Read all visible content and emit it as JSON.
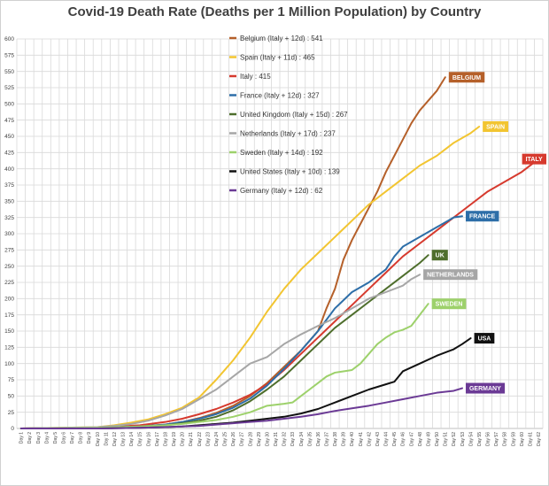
{
  "chart_data": {
    "type": "line",
    "title": "Covid-19 Death Rate (Deaths per 1 Million Population) by Country",
    "xlabel": "",
    "ylabel": "",
    "ylim": [
      0,
      600
    ],
    "yticks": [
      0,
      25,
      50,
      75,
      100,
      125,
      150,
      175,
      200,
      225,
      250,
      275,
      300,
      325,
      350,
      375,
      400,
      425,
      450,
      475,
      500,
      525,
      550,
      575,
      600
    ],
    "x": [
      "Day 1",
      "Day 2",
      "Day 3",
      "Day 4",
      "Day 5",
      "Day 6",
      "Day 7",
      "Day 8",
      "Day 9",
      "Day 10",
      "Day 11",
      "Day 12",
      "Day 13",
      "Day 14",
      "Day 15",
      "Day 16",
      "Day 17",
      "Day 18",
      "Day 19",
      "Day 20",
      "Day 21",
      "Day 22",
      "Day 23",
      "Day 24",
      "Day 25",
      "Day 26",
      "Day 27",
      "Day 28",
      "Day 29",
      "Day 30",
      "Day 31",
      "Day 32",
      "Day 33",
      "Day 34",
      "Day 35",
      "Day 36",
      "Day 37",
      "Day 38",
      "Day 39",
      "Day 40",
      "Day 41",
      "Day 42",
      "Day 43",
      "Day 44",
      "Day 45",
      "Day 46",
      "Day 47",
      "Day 48",
      "Day 49",
      "Day 50",
      "Day 51",
      "Day 52",
      "Day 53",
      "Day 54",
      "Day 55",
      "Day 56",
      "Day 57",
      "Day 58",
      "Day 59",
      "Day 60",
      "Day 61",
      "Day 62"
    ],
    "grid": true,
    "legend_position": "top-center",
    "series": [
      {
        "name": "Belgium (Italy + 12d) : 541",
        "end_label": "BELGIUM",
        "color": "#b5602a",
        "points": [
          [
            1,
            0
          ],
          [
            10,
            1
          ],
          [
            15,
            3
          ],
          [
            18,
            6
          ],
          [
            20,
            10
          ],
          [
            22,
            16
          ],
          [
            24,
            24
          ],
          [
            26,
            35
          ],
          [
            28,
            50
          ],
          [
            30,
            70
          ],
          [
            32,
            95
          ],
          [
            34,
            120
          ],
          [
            36,
            150
          ],
          [
            37,
            185
          ],
          [
            38,
            215
          ],
          [
            39,
            260
          ],
          [
            40,
            290
          ],
          [
            41,
            315
          ],
          [
            42,
            340
          ],
          [
            43,
            365
          ],
          [
            44,
            395
          ],
          [
            45,
            420
          ],
          [
            46,
            445
          ],
          [
            47,
            470
          ],
          [
            48,
            490
          ],
          [
            49,
            505
          ],
          [
            50,
            520
          ],
          [
            51,
            541
          ]
        ]
      },
      {
        "name": "Spain (Italy + 11d) : 465",
        "end_label": "SPAIN",
        "color": "#f2c531",
        "points": [
          [
            1,
            0
          ],
          [
            10,
            2
          ],
          [
            12,
            5
          ],
          [
            14,
            9
          ],
          [
            16,
            14
          ],
          [
            18,
            22
          ],
          [
            20,
            32
          ],
          [
            22,
            48
          ],
          [
            24,
            75
          ],
          [
            26,
            105
          ],
          [
            28,
            140
          ],
          [
            30,
            180
          ],
          [
            32,
            215
          ],
          [
            34,
            245
          ],
          [
            36,
            270
          ],
          [
            38,
            295
          ],
          [
            40,
            320
          ],
          [
            42,
            345
          ],
          [
            44,
            365
          ],
          [
            46,
            385
          ],
          [
            48,
            405
          ],
          [
            50,
            420
          ],
          [
            52,
            440
          ],
          [
            54,
            455
          ],
          [
            55,
            465
          ]
        ]
      },
      {
        "name": "Italy : 415",
        "end_label": "ITALY",
        "color": "#d63a2e",
        "points": [
          [
            1,
            0
          ],
          [
            10,
            1
          ],
          [
            15,
            5
          ],
          [
            18,
            10
          ],
          [
            20,
            15
          ],
          [
            22,
            22
          ],
          [
            24,
            30
          ],
          [
            26,
            40
          ],
          [
            28,
            52
          ],
          [
            30,
            68
          ],
          [
            32,
            90
          ],
          [
            34,
            115
          ],
          [
            36,
            140
          ],
          [
            38,
            165
          ],
          [
            40,
            190
          ],
          [
            42,
            215
          ],
          [
            44,
            240
          ],
          [
            46,
            265
          ],
          [
            48,
            285
          ],
          [
            50,
            305
          ],
          [
            52,
            325
          ],
          [
            54,
            345
          ],
          [
            56,
            365
          ],
          [
            58,
            380
          ],
          [
            60,
            395
          ],
          [
            62,
            415
          ]
        ]
      },
      {
        "name": "France (Italy + 12d) : 327",
        "end_label": "FRANCE",
        "color": "#2d6ea8",
        "points": [
          [
            1,
            0
          ],
          [
            10,
            1
          ],
          [
            15,
            3
          ],
          [
            18,
            6
          ],
          [
            20,
            10
          ],
          [
            22,
            15
          ],
          [
            24,
            22
          ],
          [
            26,
            32
          ],
          [
            28,
            46
          ],
          [
            30,
            66
          ],
          [
            32,
            92
          ],
          [
            34,
            120
          ],
          [
            36,
            150
          ],
          [
            38,
            185
          ],
          [
            40,
            210
          ],
          [
            42,
            225
          ],
          [
            44,
            245
          ],
          [
            45,
            265
          ],
          [
            46,
            280
          ],
          [
            48,
            295
          ],
          [
            50,
            310
          ],
          [
            52,
            325
          ],
          [
            53,
            327
          ]
        ]
      },
      {
        "name": "United Kingdom (Italy + 15d) : 267",
        "end_label": "UK",
        "color": "#4e6e2c",
        "points": [
          [
            1,
            0
          ],
          [
            10,
            1
          ],
          [
            15,
            3
          ],
          [
            18,
            5
          ],
          [
            20,
            8
          ],
          [
            22,
            12
          ],
          [
            24,
            18
          ],
          [
            26,
            28
          ],
          [
            28,
            42
          ],
          [
            30,
            60
          ],
          [
            32,
            80
          ],
          [
            34,
            105
          ],
          [
            36,
            130
          ],
          [
            38,
            155
          ],
          [
            40,
            175
          ],
          [
            42,
            195
          ],
          [
            44,
            215
          ],
          [
            46,
            235
          ],
          [
            48,
            255
          ],
          [
            49,
            267
          ]
        ]
      },
      {
        "name": "Netherlands (Italy + 17d) : 237",
        "end_label": "NETHERLANDS",
        "color": "#a6a6a6",
        "points": [
          [
            1,
            0
          ],
          [
            10,
            2
          ],
          [
            12,
            4
          ],
          [
            14,
            7
          ],
          [
            16,
            12
          ],
          [
            18,
            20
          ],
          [
            20,
            30
          ],
          [
            22,
            45
          ],
          [
            24,
            60
          ],
          [
            26,
            80
          ],
          [
            28,
            100
          ],
          [
            30,
            110
          ],
          [
            31,
            120
          ],
          [
            32,
            130
          ],
          [
            34,
            145
          ],
          [
            36,
            158
          ],
          [
            38,
            170
          ],
          [
            40,
            185
          ],
          [
            42,
            200
          ],
          [
            44,
            210
          ],
          [
            46,
            220
          ],
          [
            47,
            230
          ],
          [
            48,
            237
          ]
        ]
      },
      {
        "name": "Sweden (Italy + 14d) : 192",
        "end_label": "SWEDEN",
        "color": "#9dd16b",
        "points": [
          [
            1,
            0
          ],
          [
            10,
            1
          ],
          [
            15,
            3
          ],
          [
            18,
            5
          ],
          [
            20,
            7
          ],
          [
            22,
            10
          ],
          [
            24,
            13
          ],
          [
            26,
            18
          ],
          [
            28,
            25
          ],
          [
            30,
            35
          ],
          [
            32,
            38
          ],
          [
            33,
            40
          ],
          [
            34,
            50
          ],
          [
            35,
            60
          ],
          [
            36,
            70
          ],
          [
            37,
            80
          ],
          [
            38,
            86
          ],
          [
            39,
            88
          ],
          [
            40,
            90
          ],
          [
            41,
            100
          ],
          [
            42,
            115
          ],
          [
            43,
            130
          ],
          [
            44,
            140
          ],
          [
            45,
            148
          ],
          [
            46,
            152
          ],
          [
            47,
            158
          ],
          [
            48,
            175
          ],
          [
            49,
            192
          ]
        ]
      },
      {
        "name": "United States (Italy + 10d) : 139",
        "end_label": "USA",
        "color": "#111111",
        "points": [
          [
            1,
            0
          ],
          [
            10,
            0
          ],
          [
            15,
            1
          ],
          [
            18,
            2
          ],
          [
            20,
            3
          ],
          [
            22,
            5
          ],
          [
            24,
            7
          ],
          [
            26,
            9
          ],
          [
            28,
            12
          ],
          [
            30,
            15
          ],
          [
            32,
            18
          ],
          [
            34,
            23
          ],
          [
            36,
            30
          ],
          [
            38,
            40
          ],
          [
            40,
            50
          ],
          [
            42,
            60
          ],
          [
            44,
            68
          ],
          [
            45,
            72
          ],
          [
            46,
            88
          ],
          [
            48,
            100
          ],
          [
            50,
            112
          ],
          [
            52,
            122
          ],
          [
            53,
            130
          ],
          [
            54,
            139
          ]
        ]
      },
      {
        "name": "Germany (Italy + 12d) : 62",
        "end_label": "GERMANY",
        "color": "#6b3a95",
        "points": [
          [
            1,
            0
          ],
          [
            10,
            0
          ],
          [
            15,
            1
          ],
          [
            18,
            2
          ],
          [
            20,
            3
          ],
          [
            22,
            4
          ],
          [
            24,
            6
          ],
          [
            26,
            8
          ],
          [
            28,
            10
          ],
          [
            30,
            12
          ],
          [
            32,
            15
          ],
          [
            34,
            18
          ],
          [
            36,
            22
          ],
          [
            38,
            27
          ],
          [
            40,
            31
          ],
          [
            42,
            35
          ],
          [
            44,
            40
          ],
          [
            46,
            45
          ],
          [
            48,
            50
          ],
          [
            50,
            55
          ],
          [
            52,
            58
          ],
          [
            53,
            62
          ]
        ]
      }
    ]
  }
}
